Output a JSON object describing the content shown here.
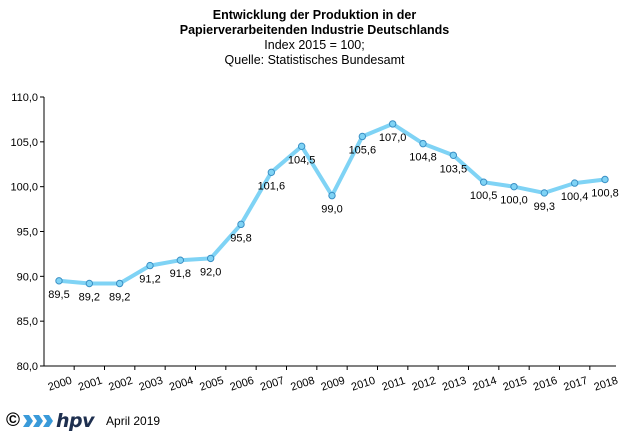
{
  "title_line1": "Entwicklung der Produktion  in der",
  "title_line2": "Papierverarbeitenden Industrie Deutschlands",
  "subtitle_line1": "Index 2015  = 100;",
  "subtitle_line2": "Quelle:  Statistisches Bundesamt",
  "footer": {
    "copyright_symbol": "©",
    "logo_text": "hpv",
    "date": "April 2019"
  },
  "colors": {
    "line": "#7fd3f5",
    "marker_fill": "#7fd3f5",
    "marker_stroke": "#3a8fc4",
    "axis": "#000000",
    "logo_blue": "#3a9ad9",
    "logo_dark": "#1e2f4f"
  },
  "chart_data": {
    "type": "line",
    "x": [
      "2000",
      "2001",
      "2002",
      "2003",
      "2004",
      "2005",
      "2006",
      "2007",
      "2008",
      "2009",
      "2010",
      "2011",
      "2012",
      "2013",
      "2014",
      "2015",
      "2016",
      "2017",
      "2018"
    ],
    "series": [
      {
        "values": [
          89.5,
          89.2,
          89.2,
          91.2,
          91.8,
          92.0,
          95.8,
          101.6,
          104.5,
          99.0,
          105.6,
          107.0,
          104.8,
          103.5,
          100.5,
          100.0,
          99.3,
          100.4,
          100.8
        ],
        "labels": [
          "89,5",
          "89,2",
          "89,2",
          "91,2",
          "91,8",
          "92,0",
          "95,8",
          "101,6",
          "104,5",
          "99,0",
          "105,6",
          "107,0",
          "104,8",
          "103,5",
          "100,5",
          "100,0",
          "99,3",
          "100,4",
          "100,8"
        ]
      }
    ],
    "ylim": [
      80,
      110
    ],
    "yticks": [
      80,
      85,
      90,
      95,
      100,
      105,
      110
    ],
    "ytick_labels": [
      "80,0",
      "85,0",
      "90,0",
      "95,0",
      "100,0",
      "105,0",
      "110,0"
    ],
    "grid": false,
    "legend": "none"
  }
}
